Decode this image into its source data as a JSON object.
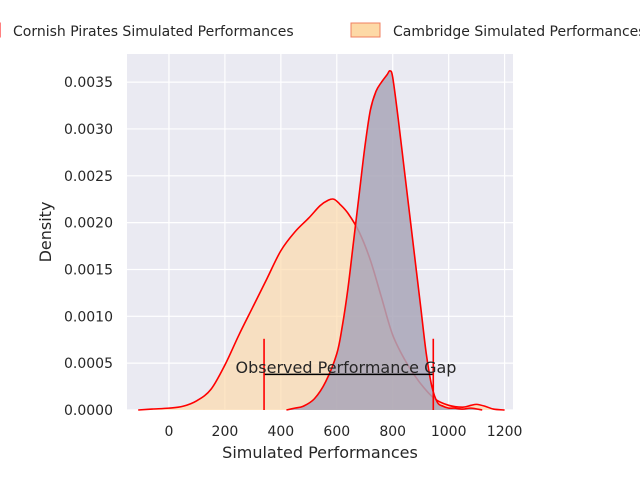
{
  "chart_data": {
    "type": "area",
    "xlabel": "Simulated Performances",
    "ylabel": "Density",
    "xlim": [
      -150,
      1230
    ],
    "ylim": [
      0,
      0.0038
    ],
    "xticks": [
      0,
      200,
      400,
      600,
      800,
      1000,
      1200
    ],
    "yticks": [
      0.0,
      0.0005,
      0.001,
      0.0015,
      0.002,
      0.0025,
      0.003,
      0.0035
    ],
    "ytick_labels": [
      "0.0000",
      "0.0005",
      "0.0010",
      "0.0015",
      "0.0020",
      "0.0025",
      "0.0030",
      "0.0035"
    ],
    "grid": true,
    "legend_placement": "top-center",
    "series": [
      {
        "name": "Cornish Pirates Simulated Performances",
        "fill": "#a9a6b8",
        "edge": "#ff0000",
        "x": [
          420,
          450,
          480,
          520,
          560,
          600,
          620,
          640,
          660,
          680,
          700,
          720,
          740,
          760,
          780,
          790,
          800,
          820,
          840,
          860,
          880,
          900,
          920,
          940,
          960,
          980,
          1000,
          1020,
          1050,
          1080,
          1120
        ],
        "y": [
          0.0,
          2e-05,
          4e-05,
          0.00012,
          0.0003,
          0.0006,
          0.0009,
          0.0013,
          0.0018,
          0.0023,
          0.0028,
          0.0032,
          0.0034,
          0.0035,
          0.00358,
          0.00362,
          0.00355,
          0.0031,
          0.0026,
          0.0021,
          0.0016,
          0.0011,
          0.0006,
          0.00025,
          8e-05,
          4e-05,
          2e-05,
          2e-05,
          1e-05,
          2e-05,
          0.0
        ]
      },
      {
        "name": "Cambridge Simulated Performances",
        "fill": "#fdd9a6",
        "edge": "#ff0000",
        "x": [
          -110,
          -60,
          0,
          50,
          100,
          150,
          200,
          250,
          300,
          350,
          400,
          450,
          500,
          540,
          570,
          590,
          610,
          640,
          680,
          720,
          760,
          800,
          850,
          900,
          950,
          1000,
          1050,
          1080,
          1100,
          1130,
          1160,
          1200
        ],
        "y": [
          0.0,
          1e-05,
          2e-05,
          4e-05,
          0.0001,
          0.00022,
          0.00048,
          0.0008,
          0.0011,
          0.0014,
          0.0017,
          0.0019,
          0.00205,
          0.00218,
          0.00224,
          0.00225,
          0.0022,
          0.0021,
          0.0019,
          0.0016,
          0.0012,
          0.0008,
          0.0005,
          0.00028,
          0.00012,
          5e-05,
          3e-05,
          5e-05,
          6e-05,
          4e-05,
          1e-05,
          0.0
        ]
      }
    ],
    "annotation": {
      "text": "Observed Performance Gap",
      "x_start": 340,
      "x_end": 945,
      "y": 0.00038,
      "tick_top": 0.00076
    }
  }
}
